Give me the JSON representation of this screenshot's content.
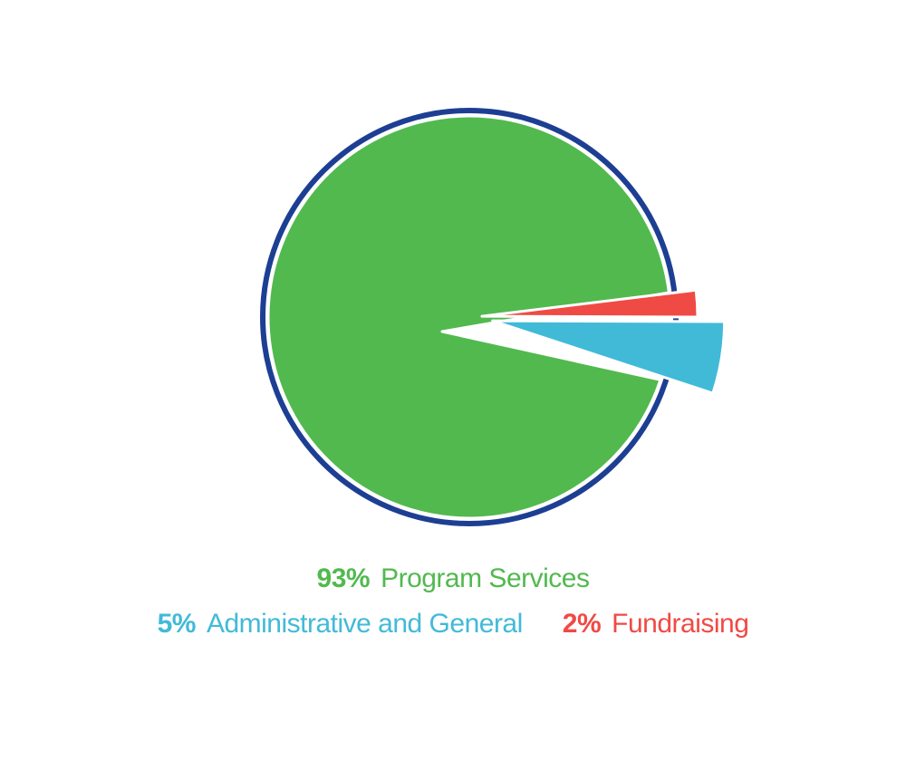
{
  "chart_data": {
    "type": "pie",
    "title": "",
    "slices": [
      {
        "label": "Program Services",
        "value": 93,
        "value_label": "93%",
        "color": "#52b94f",
        "exploded": false
      },
      {
        "label": "Administrative and General",
        "value": 5,
        "value_label": "5%",
        "color": "#41bad8",
        "exploded": true
      },
      {
        "label": "Fundraising",
        "value": 2,
        "value_label": "2%",
        "color": "#f04a45",
        "exploded": true
      }
    ],
    "outline_color": "#1d3f93",
    "legend_position": "bottom"
  }
}
